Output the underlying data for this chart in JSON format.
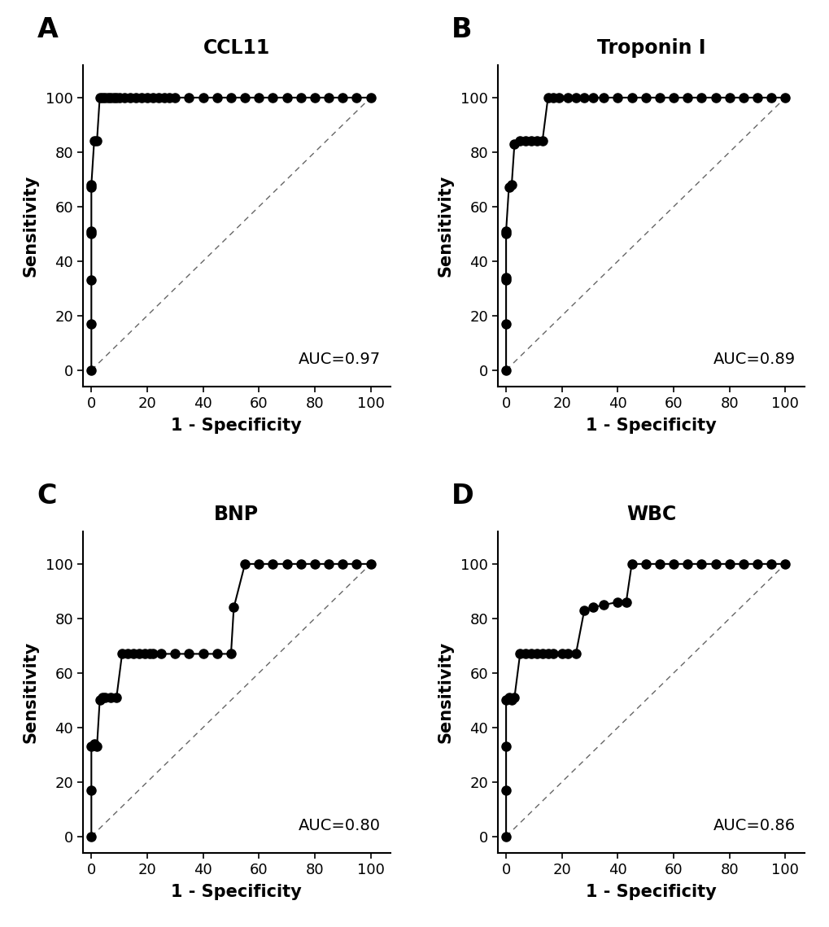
{
  "panels": [
    {
      "label": "A",
      "title": "CCL11",
      "auc": "AUC=0.97",
      "fpr": [
        0,
        0,
        0,
        0,
        0,
        0,
        0,
        1,
        2,
        3,
        4,
        5,
        6,
        7,
        8,
        9,
        10,
        12,
        14,
        16,
        18,
        20,
        22,
        24,
        26,
        28,
        30,
        35,
        40,
        45,
        50,
        55,
        60,
        65,
        70,
        75,
        80,
        85,
        90,
        95,
        100
      ],
      "tpr": [
        0,
        17,
        33,
        50,
        51,
        67,
        68,
        84,
        84,
        100,
        100,
        100,
        100,
        100,
        100,
        100,
        100,
        100,
        100,
        100,
        100,
        100,
        100,
        100,
        100,
        100,
        100,
        100,
        100,
        100,
        100,
        100,
        100,
        100,
        100,
        100,
        100,
        100,
        100,
        100,
        100
      ]
    },
    {
      "label": "B",
      "title": "Troponin I",
      "auc": "AUC=0.89",
      "fpr": [
        0,
        0,
        0,
        0,
        0,
        0,
        1,
        2,
        3,
        5,
        7,
        9,
        11,
        13,
        15,
        17,
        19,
        22,
        25,
        28,
        31,
        35,
        40,
        45,
        50,
        55,
        60,
        65,
        70,
        75,
        80,
        85,
        90,
        95,
        100
      ],
      "tpr": [
        0,
        17,
        33,
        34,
        50,
        51,
        67,
        68,
        83,
        84,
        84,
        84,
        84,
        84,
        100,
        100,
        100,
        100,
        100,
        100,
        100,
        100,
        100,
        100,
        100,
        100,
        100,
        100,
        100,
        100,
        100,
        100,
        100,
        100,
        100
      ]
    },
    {
      "label": "C",
      "title": "BNP",
      "auc": "AUC=0.80",
      "fpr": [
        0,
        0,
        0,
        1,
        2,
        3,
        4,
        5,
        7,
        9,
        11,
        13,
        15,
        17,
        19,
        21,
        22,
        25,
        30,
        35,
        40,
        45,
        50,
        51,
        55,
        60,
        65,
        70,
        75,
        80,
        85,
        90,
        95,
        100
      ],
      "tpr": [
        0,
        17,
        33,
        34,
        33,
        50,
        51,
        51,
        51,
        51,
        67,
        67,
        67,
        67,
        67,
        67,
        67,
        67,
        67,
        67,
        67,
        67,
        67,
        84,
        100,
        100,
        100,
        100,
        100,
        100,
        100,
        100,
        100,
        100
      ]
    },
    {
      "label": "D",
      "title": "WBC",
      "auc": "AUC=0.86",
      "fpr": [
        0,
        0,
        0,
        0,
        1,
        2,
        3,
        5,
        7,
        9,
        11,
        13,
        15,
        17,
        20,
        22,
        25,
        28,
        31,
        35,
        40,
        43,
        45,
        50,
        55,
        60,
        65,
        70,
        75,
        80,
        85,
        90,
        95,
        100
      ],
      "tpr": [
        0,
        17,
        33,
        50,
        51,
        50,
        51,
        67,
        67,
        67,
        67,
        67,
        67,
        67,
        67,
        67,
        67,
        83,
        84,
        85,
        86,
        86,
        100,
        100,
        100,
        100,
        100,
        100,
        100,
        100,
        100,
        100,
        100,
        100
      ]
    }
  ],
  "point_color": "#000000",
  "line_color": "#000000",
  "diagonal_color": "#666666",
  "background_color": "#ffffff",
  "xlabel": "1 - Specificity",
  "ylabel": "Sensitivity",
  "xlim": [
    -3,
    107
  ],
  "ylim": [
    -6,
    112
  ],
  "xticks": [
    0,
    20,
    40,
    60,
    80,
    100
  ],
  "yticks": [
    0,
    20,
    40,
    60,
    80,
    100
  ],
  "marker_size": 8,
  "line_width": 1.5,
  "label_fontsize": 15,
  "panel_label_fontsize": 24,
  "title_fontsize": 17,
  "auc_fontsize": 14,
  "tick_fontsize": 13
}
